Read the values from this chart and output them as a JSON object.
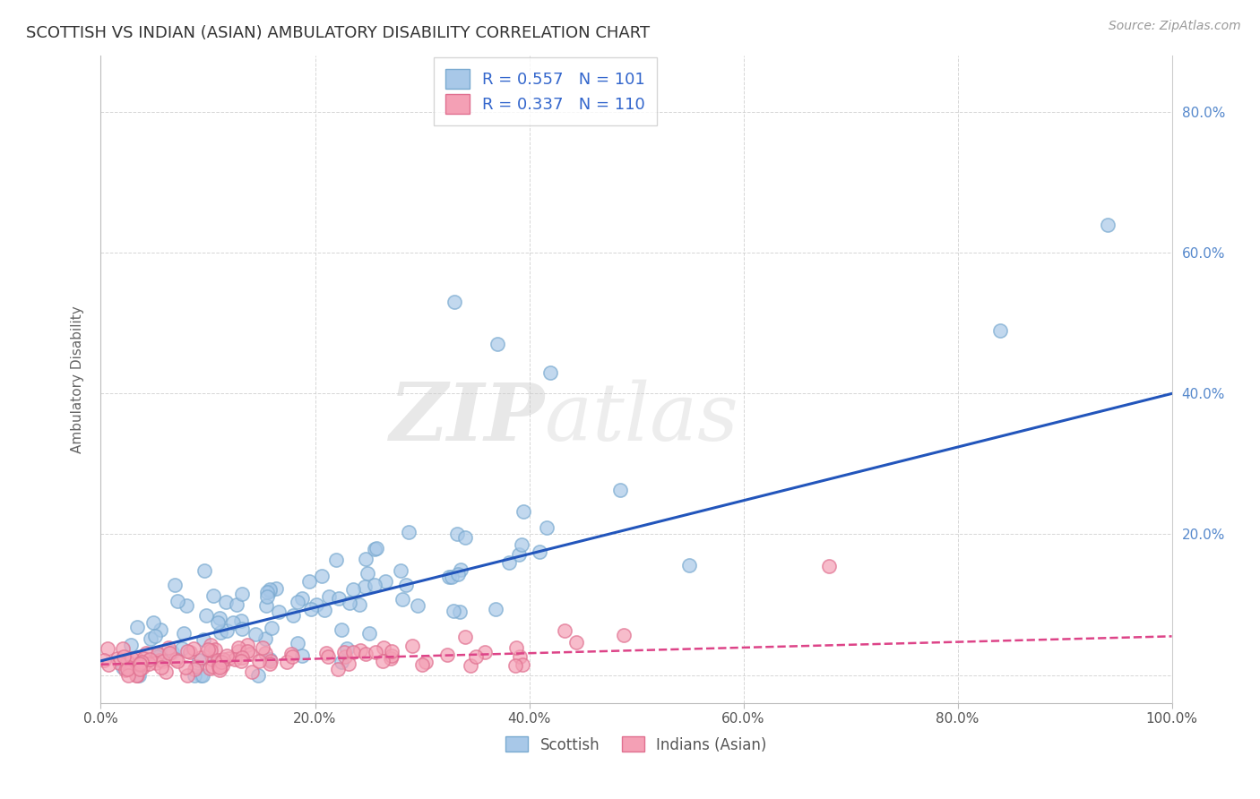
{
  "title": "SCOTTISH VS INDIAN (ASIAN) AMBULATORY DISABILITY CORRELATION CHART",
  "source": "Source: ZipAtlas.com",
  "xlabel_ticks": [
    "0.0%",
    "20.0%",
    "40.0%",
    "60.0%",
    "80.0%",
    "100.0%"
  ],
  "ylabel": "Ambulatory Disability",
  "ytick_labels_right": [
    "80.0%",
    "60.0%",
    "40.0%",
    "20.0%"
  ],
  "legend_labels": [
    "Scottish",
    "Indians (Asian)"
  ],
  "legend_r": [
    0.557,
    0.337
  ],
  "legend_n": [
    101,
    110
  ],
  "scatter_color_blue": "#A8C8E8",
  "scatter_edge_blue": "#7AAAD0",
  "scatter_color_pink": "#F4A0B5",
  "scatter_edge_pink": "#E07090",
  "line_color_blue": "#2255BB",
  "line_color_pink": "#DD4488",
  "grid_color": "#CCCCCC",
  "background_color": "#FFFFFF",
  "title_color": "#333333",
  "legend_r_color": "#3366CC",
  "legend_n_color": "#3366CC",
  "seed": 42,
  "n_scottish": 101,
  "n_indian": 110,
  "scottish_slope": 0.38,
  "scottish_intercept": 0.02,
  "indian_slope": 0.04,
  "indian_intercept": 0.015,
  "xlim": [
    0.0,
    1.0
  ],
  "ylim": [
    -0.04,
    0.88
  ],
  "yticks": [
    0.0,
    0.2,
    0.4,
    0.6,
    0.8
  ]
}
